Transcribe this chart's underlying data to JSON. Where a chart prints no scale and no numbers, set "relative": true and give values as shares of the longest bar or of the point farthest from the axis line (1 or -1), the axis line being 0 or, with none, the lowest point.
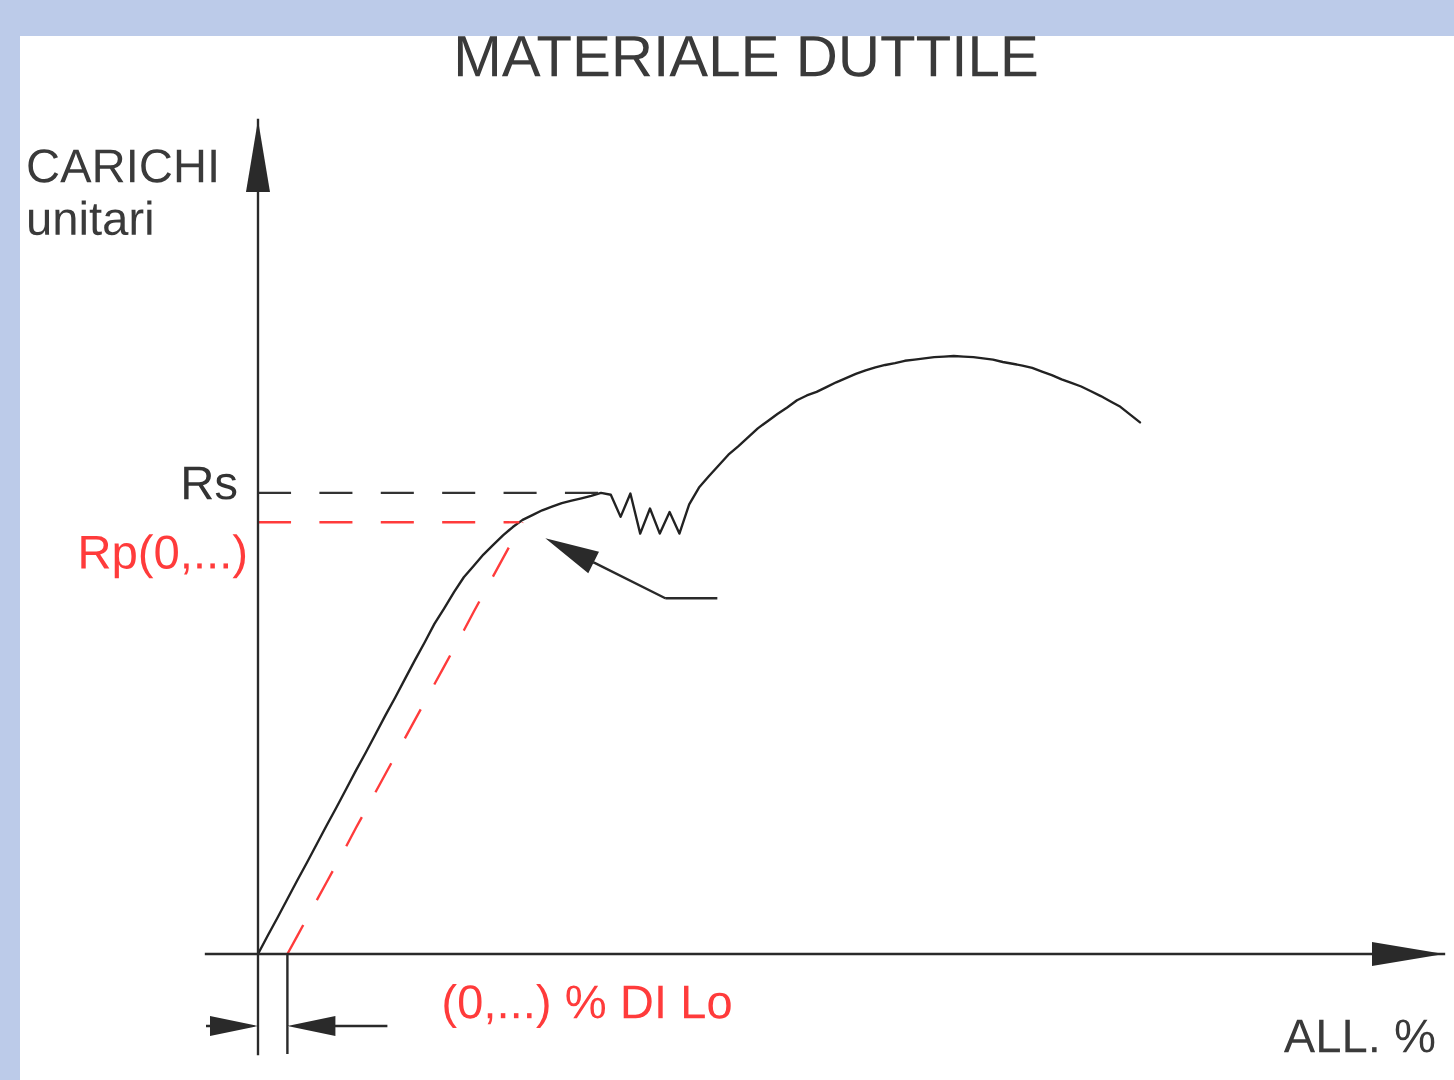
{
  "chart_data": {
    "type": "line",
    "title": "MATERIALE DUTTILE",
    "xlabel": "ALL. %",
    "ylabel": "CARICHI\nunitari",
    "relative": true,
    "categories": [
      null,
      null,
      null,
      null,
      null,
      null,
      null,
      null,
      null,
      null,
      null,
      null,
      null,
      null,
      null,
      null,
      null,
      null,
      null,
      null,
      null,
      null,
      null,
      null,
      null,
      null,
      null,
      null,
      null,
      null,
      null,
      null,
      null,
      null,
      null,
      null,
      null,
      null,
      null,
      null,
      null,
      null,
      null,
      null,
      null,
      null,
      null,
      null,
      null,
      null,
      null,
      null,
      null,
      null,
      null,
      null,
      null,
      null,
      null,
      null,
      null,
      null,
      null,
      null,
      null,
      null,
      null,
      null,
      null,
      null,
      null,
      null,
      null,
      null,
      null,
      null,
      null,
      null,
      null,
      null,
      null,
      null,
      null,
      null,
      null,
      null,
      null,
      null,
      null,
      null,
      null
    ],
    "series": [
      {
        "color": "#222222",
        "line_style": "solid",
        "values": [
          0,
          0.031,
          0.061,
          0.092,
          0.123,
          0.153,
          0.184,
          0.215,
          0.245,
          0.276,
          0.307,
          0.337,
          0.368,
          0.399,
          0.429,
          0.46,
          0.491,
          0.521,
          0.552,
          0.578,
          0.605,
          0.63,
          0.649,
          0.668,
          0.684,
          0.7,
          0.714,
          0.726,
          0.734,
          0.742,
          0.748,
          0.754,
          0.758,
          0.762,
          0.766,
          0.771,
          0.768,
          0.731,
          0.77,
          0.703,
          0.745,
          0.703,
          0.739,
          0.703,
          0.752,
          0.78,
          0.799,
          0.817,
          0.835,
          0.849,
          0.864,
          0.879,
          0.891,
          0.903,
          0.914,
          0.926,
          0.934,
          0.94,
          0.948,
          0.956,
          0.963,
          0.97,
          0.976,
          0.981,
          0.985,
          0.988,
          0.992,
          0.994,
          0.996,
          0.998,
          0.999,
          1.0,
          0.999,
          0.998,
          0.996,
          0.994,
          0.99,
          0.987,
          0.984,
          0.98,
          0.974,
          0.968,
          0.961,
          0.955,
          0.949,
          0.941,
          0.933,
          0.924,
          0.915,
          0.902,
          0.889
        ]
      },
      {
        "color": "#ff3b3b",
        "line_style": "dashed",
        "values": [
          null,
          null,
          null,
          0,
          0.03,
          0.06,
          0.09,
          0.12,
          0.15,
          0.18,
          0.211,
          0.241,
          0.271,
          0.301,
          0.331,
          0.361,
          0.391,
          0.421,
          0.451,
          0.481,
          0.511,
          0.541,
          0.572,
          0.602,
          0.632,
          0.662,
          0.692,
          0.722,
          null,
          null,
          null,
          null,
          null,
          null,
          null,
          null,
          null,
          null,
          null,
          null,
          null,
          null,
          null,
          null,
          null,
          null,
          null,
          null,
          null,
          null,
          null,
          null,
          null,
          null,
          null,
          null,
          null,
          null,
          null,
          null,
          null,
          null,
          null,
          null,
          null,
          null,
          null,
          null,
          null,
          null,
          null,
          null,
          null,
          null,
          null,
          null,
          null,
          null,
          null,
          null,
          null,
          null,
          null,
          null,
          null,
          null,
          null,
          null,
          null,
          null,
          null
        ]
      }
    ],
    "ref_lines": [
      {
        "axis": "y",
        "value": 0.771,
        "label": "Rs",
        "color": "#333333",
        "line_style": "dashed"
      },
      {
        "axis": "y",
        "value": 0.722,
        "label": "Rp(0,...)",
        "color": "#ff3b3b",
        "line_style": "dashed"
      }
    ],
    "annotations": [
      "(0,...) % DI Lo"
    ]
  }
}
